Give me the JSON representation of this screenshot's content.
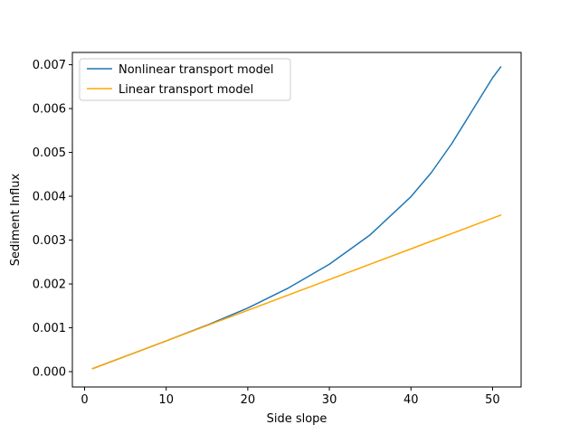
{
  "chart_data": {
    "type": "line",
    "title": "",
    "xlabel": "Side slope",
    "ylabel": "Sediment Influx",
    "xlim": [
      -1.5,
      53.5
    ],
    "ylim": [
      -0.00035,
      0.00728
    ],
    "xticks": [
      0,
      10,
      20,
      30,
      40,
      50
    ],
    "xtick_labels": [
      "0",
      "10",
      "20",
      "30",
      "40",
      "50"
    ],
    "yticks": [
      0.0,
      0.001,
      0.002,
      0.003,
      0.004,
      0.005,
      0.006,
      0.007
    ],
    "ytick_labels": [
      "0.000",
      "0.001",
      "0.002",
      "0.003",
      "0.004",
      "0.005",
      "0.006",
      "0.007"
    ],
    "grid": false,
    "legend_position": "upper-left",
    "x": [
      1,
      5,
      10,
      15,
      20,
      25,
      30,
      35,
      40,
      42.5,
      45,
      47.5,
      50,
      51
    ],
    "series": [
      {
        "name": "Nonlinear transport model",
        "color": "#1f77b4",
        "values": [
          7e-05,
          0.00035,
          0.0007,
          0.00106,
          0.00145,
          0.00191,
          0.00245,
          0.00312,
          0.00399,
          0.00454,
          0.0052,
          0.00595,
          0.0067,
          0.00695
        ]
      },
      {
        "name": "Linear transport model",
        "color": "#ffa500",
        "values": [
          7e-05,
          0.00035,
          0.0007,
          0.00105,
          0.0014,
          0.00175,
          0.0021,
          0.00245,
          0.0028,
          0.002975,
          0.00315,
          0.003325,
          0.0035,
          0.00357
        ]
      }
    ]
  }
}
